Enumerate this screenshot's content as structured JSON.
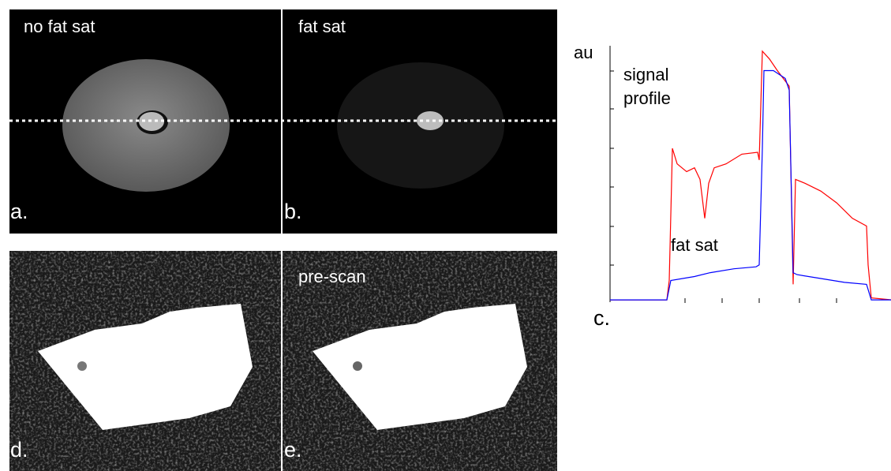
{
  "panels": [
    {
      "label": "a.",
      "title": "no fat sat"
    },
    {
      "label": "b.",
      "title": "fat sat"
    },
    {
      "label": "d."
    },
    {
      "label": "e.",
      "title": "pre-scan"
    }
  ],
  "chart_data": {
    "type": "line",
    "title": "signal profile",
    "y_axis_label": "au",
    "panel_label": "c.",
    "annotations": [
      "fat sat"
    ],
    "xlim": [
      0,
      357
    ],
    "ylim": [
      0,
      6.6
    ],
    "series": [
      {
        "color": "#ff0000",
        "x": [
          0,
          72,
          75,
          79,
          85,
          97,
          107,
          114,
          120,
          125,
          132,
          147,
          167,
          187,
          189,
          193,
          202,
          212,
          227,
          232,
          235,
          247,
          267,
          287,
          307,
          325,
          327,
          331,
          357
        ],
        "values": [
          0.1,
          0.1,
          0.6,
          4.0,
          3.6,
          3.4,
          3.5,
          3.2,
          2.2,
          3.1,
          3.5,
          3.6,
          3.85,
          3.9,
          3.7,
          6.5,
          6.3,
          6.0,
          5.6,
          0.5,
          3.2,
          3.1,
          2.9,
          2.6,
          2.2,
          2.0,
          1.0,
          0.15,
          0.1
        ]
      },
      {
        "color": "#0000ff",
        "x": [
          0,
          72,
          77,
          107,
          127,
          157,
          185,
          189,
          193,
          195,
          207,
          222,
          227,
          232,
          237,
          267,
          297,
          325,
          331,
          357
        ],
        "values": [
          0.1,
          0.1,
          0.6,
          0.7,
          0.8,
          0.9,
          0.95,
          1.0,
          4.0,
          6.0,
          6.0,
          5.8,
          5.5,
          0.8,
          0.75,
          0.65,
          0.55,
          0.5,
          0.1,
          0.1
        ]
      }
    ]
  }
}
